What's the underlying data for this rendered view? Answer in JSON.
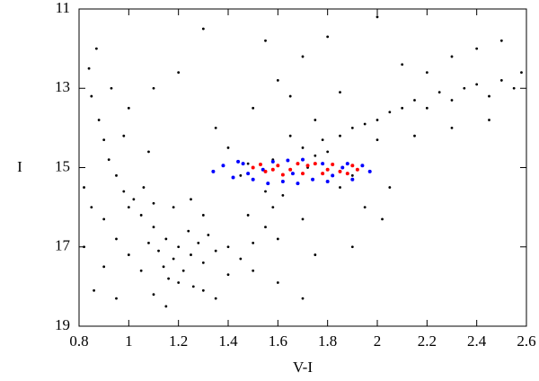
{
  "chart_data": {
    "type": "scatter",
    "x_label": "V-I",
    "y_label": "I",
    "xlim": [
      0.8,
      2.6
    ],
    "xticks": [
      0.8,
      1,
      1.2,
      1.4,
      1.6,
      1.8,
      2,
      2.2,
      2.4,
      2.6
    ],
    "ylim": [
      11,
      19
    ],
    "yticks": [
      11,
      13,
      15,
      17,
      19
    ],
    "y_inverted": true,
    "series": [
      {
        "color": "#000000",
        "x": [
          1.2,
          1.15,
          1.25,
          1.1,
          1.3,
          1.22,
          1.18,
          1.05,
          1.28,
          1.35,
          1.12,
          1.08,
          1.24,
          1.32,
          1.4,
          1.16,
          1.26,
          1.2,
          1.14,
          1.3,
          1.0,
          0.98,
          1.02,
          0.95,
          0.92,
          0.9,
          0.88,
          0.85,
          0.84,
          0.87,
          1.06,
          1.1,
          1.0,
          1.05,
          0.95,
          0.9,
          0.85,
          0.9,
          1.1,
          1.4,
          1.45,
          1.5,
          1.55,
          1.48,
          1.58,
          1.62,
          1.55,
          1.68,
          1.72,
          1.75,
          1.7,
          1.8,
          1.78,
          1.65,
          1.85,
          1.9,
          1.95,
          2.0,
          2.05,
          2.1,
          2.15,
          2.2,
          2.25,
          2.3,
          2.35,
          2.4,
          2.45,
          2.5,
          2.55,
          2.58,
          2.2,
          2.3,
          2.4,
          2.5,
          2.1,
          2.0,
          1.9,
          1.85,
          1.95,
          1.6,
          1.5,
          1.7,
          1.45,
          1.4,
          1.35,
          1.5,
          1.6,
          1.7,
          1.3,
          1.55,
          1.8,
          2.0,
          2.15,
          2.3,
          2.45,
          1.0,
          1.1,
          1.2,
          0.82,
          0.82,
          0.86,
          0.95,
          1.15,
          1.35,
          1.6,
          1.75,
          1.7,
          1.9,
          2.02,
          2.05,
          1.65,
          1.75,
          1.85,
          1.58,
          1.48,
          1.25,
          1.3,
          1.18,
          0.98,
          0.93,
          1.08
        ],
        "y": [
          17.0,
          16.8,
          17.2,
          16.5,
          17.4,
          17.6,
          17.3,
          16.2,
          16.9,
          17.1,
          17.1,
          16.9,
          16.6,
          16.7,
          17.0,
          17.8,
          18.0,
          17.9,
          17.5,
          18.1,
          16.0,
          15.6,
          15.8,
          15.2,
          14.8,
          14.3,
          13.8,
          13.2,
          12.5,
          12.0,
          15.5,
          15.9,
          17.2,
          17.6,
          16.8,
          16.3,
          16.0,
          17.5,
          18.2,
          17.7,
          17.3,
          16.9,
          16.5,
          16.2,
          16.0,
          15.7,
          15.6,
          15.4,
          15.0,
          14.7,
          14.5,
          14.6,
          14.3,
          14.2,
          14.2,
          14.0,
          13.9,
          13.8,
          13.6,
          13.5,
          13.3,
          13.5,
          13.1,
          13.3,
          13.0,
          12.9,
          13.2,
          12.8,
          13.0,
          12.6,
          12.6,
          12.2,
          12.0,
          11.8,
          12.4,
          14.3,
          15.2,
          15.5,
          16.0,
          16.8,
          17.6,
          16.3,
          15.2,
          14.5,
          14.0,
          13.5,
          12.8,
          12.2,
          11.5,
          11.8,
          11.7,
          11.2,
          14.2,
          14.0,
          13.8,
          13.5,
          13.0,
          12.6,
          15.5,
          17.0,
          18.1,
          18.3,
          18.5,
          18.3,
          17.9,
          17.2,
          18.3,
          17.0,
          16.3,
          15.5,
          13.2,
          13.8,
          13.1,
          14.8,
          14.9,
          15.8,
          16.2,
          16.0,
          14.2,
          13.0,
          14.6
        ]
      },
      {
        "color": "#0000ff",
        "x": [
          1.34,
          1.38,
          1.42,
          1.46,
          1.5,
          1.54,
          1.58,
          1.62,
          1.66,
          1.7,
          1.74,
          1.78,
          1.82,
          1.86,
          1.9,
          1.94,
          1.97,
          1.48,
          1.56,
          1.68,
          1.8,
          1.88,
          1.44,
          1.64
        ],
        "y": [
          15.1,
          14.95,
          15.25,
          14.9,
          15.3,
          15.05,
          14.85,
          15.35,
          15.15,
          14.8,
          15.3,
          14.9,
          15.2,
          15.0,
          15.3,
          14.95,
          15.1,
          15.15,
          15.4,
          15.4,
          15.35,
          14.9,
          14.85,
          14.82
        ]
      },
      {
        "color": "#ff0000",
        "x": [
          1.5,
          1.55,
          1.6,
          1.65,
          1.7,
          1.75,
          1.8,
          1.85,
          1.9,
          1.62,
          1.72,
          1.78,
          1.58,
          1.68,
          1.82,
          1.92,
          1.53,
          1.88
        ],
        "y": [
          15.0,
          15.1,
          14.95,
          15.05,
          15.15,
          14.9,
          15.05,
          15.1,
          14.95,
          15.18,
          14.95,
          15.15,
          15.05,
          14.9,
          14.92,
          15.05,
          14.92,
          15.15
        ]
      }
    ]
  }
}
